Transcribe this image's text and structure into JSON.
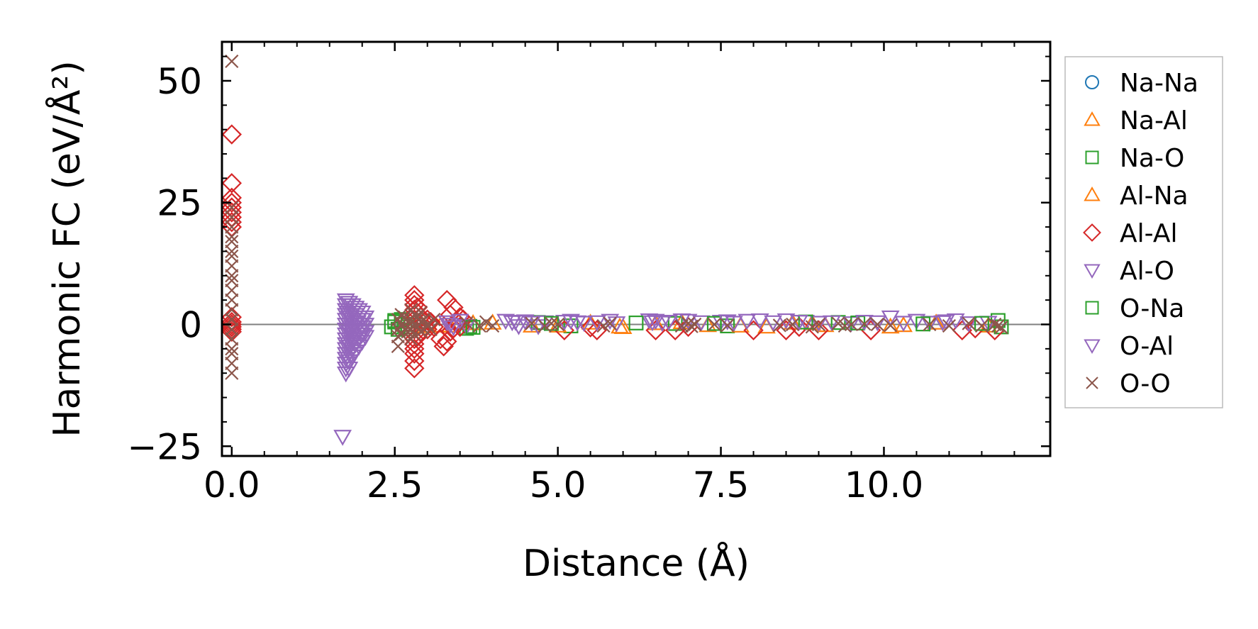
{
  "chart_data": {
    "type": "scatter",
    "title": "",
    "xlabel": "Distance (Å)",
    "ylabel": "Harmonic FC (eV/Å²)",
    "xlim": [
      -0.15,
      12.55
    ],
    "ylim": [
      -27,
      58
    ],
    "xticks": [
      0.0,
      2.5,
      5.0,
      7.5,
      10.0
    ],
    "xtick_labels": [
      "0.0",
      "2.5",
      "5.0",
      "7.5",
      "10.0"
    ],
    "yticks": [
      -25,
      0,
      25,
      50
    ],
    "ytick_labels": [
      "−25",
      "0",
      "25",
      "50"
    ],
    "reference_line_y": 0,
    "grid": false,
    "legend_position": "outside-right",
    "series": [
      {
        "name": "Na-Na",
        "marker": "circle",
        "color": "#1f77b4",
        "points": []
      },
      {
        "name": "Na-Al",
        "marker": "triangle-up",
        "color": "#ff7f0e",
        "points": [
          [
            2.95,
            -0.4
          ],
          [
            3.35,
            -0.3
          ],
          [
            3.7,
            0.2
          ],
          [
            4.6,
            -0.3
          ],
          [
            5.5,
            0.3
          ],
          [
            5.95,
            -0.5
          ],
          [
            6.0,
            -0.6
          ],
          [
            6.9,
            0.4
          ],
          [
            7.3,
            -0.2
          ],
          [
            8.2,
            -0.5
          ],
          [
            8.6,
            0.3
          ],
          [
            9.1,
            -0.2
          ],
          [
            10.1,
            -0.5
          ],
          [
            10.8,
            0.3
          ],
          [
            11.6,
            -0.3
          ]
        ]
      },
      {
        "name": "Na-O",
        "marker": "square",
        "color": "#2ca02c",
        "points": [
          [
            2.45,
            -0.5
          ],
          [
            2.5,
            0.5
          ],
          [
            2.55,
            -1.0
          ],
          [
            2.6,
            1.0
          ],
          [
            2.65,
            0.0
          ],
          [
            2.7,
            -0.5
          ],
          [
            3.6,
            -0.8
          ],
          [
            3.65,
            -0.4
          ],
          [
            4.7,
            0.4
          ],
          [
            5.2,
            -0.3
          ],
          [
            6.8,
            0.2
          ],
          [
            7.6,
            -0.3
          ],
          [
            9.3,
            0.4
          ],
          [
            11.75,
            0.8
          ],
          [
            11.8,
            -0.5
          ]
        ]
      },
      {
        "name": "Al-Na",
        "marker": "triangle-up",
        "color": "#ff7f0e",
        "points": [
          [
            3.2,
            -0.3
          ],
          [
            4.0,
            0.3
          ],
          [
            5.0,
            -0.3
          ],
          [
            6.5,
            0.2
          ],
          [
            7.8,
            -0.3
          ],
          [
            8.9,
            0.2
          ],
          [
            10.3,
            -0.2
          ]
        ]
      },
      {
        "name": "Al-Al",
        "marker": "diamond",
        "color": "#d62728",
        "points": [
          [
            0.0,
            39
          ],
          [
            0.0,
            29
          ],
          [
            0.0,
            26
          ],
          [
            0.0,
            25
          ],
          [
            0.0,
            24
          ],
          [
            0.0,
            23
          ],
          [
            0.0,
            22
          ],
          [
            0.0,
            21
          ],
          [
            0.0,
            20
          ],
          [
            0.0,
            1.5
          ],
          [
            0.0,
            0.5
          ],
          [
            0.0,
            0.0
          ],
          [
            0.0,
            -0.5
          ],
          [
            0.0,
            -1.0
          ],
          [
            0.0,
            -1.5
          ],
          [
            2.8,
            6.0
          ],
          [
            2.8,
            5.0
          ],
          [
            2.8,
            4.0
          ],
          [
            2.8,
            3.0
          ],
          [
            2.8,
            2.0
          ],
          [
            2.8,
            1.0
          ],
          [
            2.8,
            0.0
          ],
          [
            2.8,
            -1.0
          ],
          [
            2.8,
            -2.0
          ],
          [
            2.8,
            -3.0
          ],
          [
            2.8,
            -4.0
          ],
          [
            2.8,
            -5.0
          ],
          [
            2.8,
            -6.0
          ],
          [
            2.8,
            -7.5
          ],
          [
            2.8,
            -9.0
          ],
          [
            2.85,
            3.5
          ],
          [
            2.85,
            -2.5
          ],
          [
            2.9,
            1.5
          ],
          [
            2.9,
            -1.5
          ],
          [
            2.95,
            0.5
          ],
          [
            3.0,
            1.0
          ],
          [
            3.0,
            -1.0
          ],
          [
            3.05,
            0.5
          ],
          [
            3.1,
            -0.5
          ],
          [
            3.2,
            -3.0
          ],
          [
            3.25,
            -4.5
          ],
          [
            3.3,
            5.0
          ],
          [
            3.3,
            -3.5
          ],
          [
            3.35,
            2.0
          ],
          [
            3.35,
            -1.5
          ],
          [
            3.4,
            3.5
          ],
          [
            3.4,
            -0.8
          ],
          [
            3.45,
            0.5
          ],
          [
            3.5,
            1.5
          ],
          [
            3.5,
            -0.5
          ],
          [
            3.55,
            1.0
          ],
          [
            5.1,
            -1.2
          ],
          [
            5.5,
            -0.6
          ],
          [
            5.6,
            -1.2
          ],
          [
            6.5,
            -1.2
          ],
          [
            6.8,
            -1.2
          ],
          [
            7.0,
            -0.5
          ],
          [
            8.0,
            -1.2
          ],
          [
            8.5,
            -1.2
          ],
          [
            8.7,
            -0.5
          ],
          [
            9.0,
            -1.2
          ],
          [
            9.8,
            -1.2
          ],
          [
            11.2,
            -1.2
          ],
          [
            11.4,
            -0.8
          ],
          [
            11.7,
            -1.2
          ]
        ]
      },
      {
        "name": "Al-O",
        "marker": "triangle-down",
        "color": "#9467bd",
        "points": [
          [
            1.7,
            -23
          ],
          [
            1.75,
            5.0
          ],
          [
            1.75,
            4.0
          ],
          [
            1.75,
            3.0
          ],
          [
            1.75,
            2.0
          ],
          [
            1.75,
            1.0
          ],
          [
            1.75,
            0.0
          ],
          [
            1.75,
            -1.0
          ],
          [
            1.75,
            -2.0
          ],
          [
            1.75,
            -3.0
          ],
          [
            1.75,
            -4.0
          ],
          [
            1.75,
            -5.0
          ],
          [
            1.75,
            -6.0
          ],
          [
            1.75,
            -7.0
          ],
          [
            1.75,
            -8.0
          ],
          [
            1.75,
            -9.0
          ],
          [
            1.75,
            -10.0
          ],
          [
            1.8,
            4.5
          ],
          [
            1.8,
            3.0
          ],
          [
            1.8,
            1.5
          ],
          [
            1.8,
            0.0
          ],
          [
            1.8,
            -1.5
          ],
          [
            1.8,
            -3.0
          ],
          [
            1.8,
            -4.5
          ],
          [
            1.8,
            -6.0
          ],
          [
            1.8,
            -7.5
          ],
          [
            1.8,
            -9.0
          ],
          [
            1.85,
            4.0
          ],
          [
            1.85,
            2.5
          ],
          [
            1.85,
            1.0
          ],
          [
            1.85,
            -0.5
          ],
          [
            1.85,
            -2.0
          ],
          [
            1.85,
            -3.5
          ],
          [
            1.85,
            -5.0
          ],
          [
            1.85,
            -6.5
          ],
          [
            1.9,
            3.5
          ],
          [
            1.9,
            2.0
          ],
          [
            1.9,
            0.5
          ],
          [
            1.9,
            -1.0
          ],
          [
            1.9,
            -2.5
          ],
          [
            1.9,
            -4.0
          ],
          [
            1.9,
            -5.5
          ],
          [
            1.95,
            3.0
          ],
          [
            1.95,
            1.5
          ],
          [
            1.95,
            0.0
          ],
          [
            1.95,
            -1.5
          ],
          [
            1.95,
            -3.0
          ],
          [
            1.95,
            -4.5
          ],
          [
            2.0,
            2.5
          ],
          [
            2.0,
            1.0
          ],
          [
            2.0,
            -0.5
          ],
          [
            2.0,
            -2.0
          ],
          [
            2.0,
            -3.5
          ],
          [
            2.05,
            1.5
          ],
          [
            2.05,
            0.0
          ],
          [
            2.05,
            -1.5
          ],
          [
            2.05,
            -2.5
          ],
          [
            3.3,
            0.5
          ],
          [
            3.4,
            -0.5
          ],
          [
            3.5,
            0.8
          ],
          [
            3.6,
            -0.3
          ],
          [
            4.2,
            0.8
          ],
          [
            4.3,
            0.5
          ],
          [
            4.4,
            -0.3
          ],
          [
            4.5,
            0.7
          ],
          [
            4.6,
            0.4
          ],
          [
            4.7,
            -0.3
          ],
          [
            4.8,
            0.5
          ],
          [
            5.1,
            0.6
          ],
          [
            5.2,
            0.8
          ],
          [
            5.4,
            0.4
          ],
          [
            5.6,
            0.5
          ],
          [
            5.8,
            0.8
          ],
          [
            5.9,
            0.3
          ],
          [
            6.4,
            0.9
          ],
          [
            6.5,
            0.8
          ],
          [
            6.6,
            0.4
          ],
          [
            6.7,
            0.6
          ],
          [
            6.9,
            0.9
          ],
          [
            7.0,
            0.8
          ],
          [
            7.2,
            0.5
          ],
          [
            7.5,
            0.6
          ],
          [
            7.7,
            0.4
          ],
          [
            7.9,
            0.8
          ],
          [
            8.1,
            0.9
          ],
          [
            8.3,
            0.5
          ],
          [
            8.5,
            0.9
          ],
          [
            8.8,
            0.6
          ],
          [
            9.0,
            0.4
          ],
          [
            9.2,
            0.5
          ],
          [
            9.5,
            0.3
          ],
          [
            9.9,
            0.5
          ],
          [
            10.1,
            1.5
          ],
          [
            10.3,
            0.4
          ],
          [
            10.5,
            0.8
          ],
          [
            10.7,
            0.4
          ],
          [
            10.9,
            0.5
          ],
          [
            11.1,
            0.9
          ],
          [
            11.3,
            0.3
          ],
          [
            11.6,
            0.4
          ]
        ]
      },
      {
        "name": "O-Na",
        "marker": "square",
        "color": "#2ca02c",
        "points": [
          [
            2.5,
            0.8
          ],
          [
            3.7,
            -0.6
          ],
          [
            4.9,
            0.2
          ],
          [
            6.2,
            0.3
          ],
          [
            7.4,
            0.2
          ],
          [
            8.8,
            0.5
          ],
          [
            9.6,
            0.3
          ],
          [
            10.6,
            0.1
          ],
          [
            11.5,
            0.2
          ]
        ]
      },
      {
        "name": "O-Al",
        "marker": "triangle-down",
        "color": "#9467bd",
        "points": [
          [
            1.78,
            2.5
          ],
          [
            1.83,
            -1.0
          ],
          [
            1.88,
            -6.0
          ],
          [
            1.93,
            0.5
          ],
          [
            1.98,
            -2.0
          ],
          [
            3.35,
            0.0
          ],
          [
            4.35,
            0.6
          ],
          [
            5.3,
            0.5
          ],
          [
            6.45,
            0.5
          ],
          [
            7.6,
            0.7
          ],
          [
            8.7,
            0.6
          ],
          [
            9.7,
            0.6
          ],
          [
            10.95,
            0.7
          ]
        ]
      },
      {
        "name": "O-O",
        "marker": "x",
        "color": "#8c564b",
        "points": [
          [
            0.0,
            54
          ],
          [
            0.0,
            24
          ],
          [
            0.0,
            22
          ],
          [
            0.0,
            20
          ],
          [
            0.0,
            18
          ],
          [
            0.0,
            17
          ],
          [
            0.0,
            15
          ],
          [
            0.0,
            14
          ],
          [
            0.0,
            12
          ],
          [
            0.0,
            10
          ],
          [
            0.0,
            9
          ],
          [
            0.0,
            7
          ],
          [
            0.0,
            5
          ],
          [
            0.0,
            3
          ],
          [
            0.0,
            1
          ],
          [
            0.0,
            -1
          ],
          [
            0.0,
            -3
          ],
          [
            0.0,
            -5
          ],
          [
            0.0,
            -6
          ],
          [
            0.0,
            -8
          ],
          [
            0.0,
            -10
          ],
          [
            2.55,
            1.0
          ],
          [
            2.55,
            -1.0
          ],
          [
            2.55,
            -2.5
          ],
          [
            2.55,
            -4.5
          ],
          [
            2.6,
            2.0
          ],
          [
            2.6,
            0.0
          ],
          [
            2.6,
            -2.0
          ],
          [
            2.65,
            1.5
          ],
          [
            2.65,
            -1.0
          ],
          [
            2.7,
            0.5
          ],
          [
            2.7,
            -1.5
          ],
          [
            2.75,
            3.0
          ],
          [
            2.75,
            1.0
          ],
          [
            2.75,
            -1.0
          ],
          [
            2.75,
            -3.0
          ],
          [
            2.8,
            2.0
          ],
          [
            2.8,
            0.0
          ],
          [
            2.8,
            -2.0
          ],
          [
            2.85,
            1.5
          ],
          [
            2.85,
            -0.5
          ],
          [
            2.9,
            2.5
          ],
          [
            2.9,
            0.5
          ],
          [
            2.9,
            -1.5
          ],
          [
            2.95,
            1.0
          ],
          [
            2.95,
            -1.0
          ],
          [
            3.0,
            0.0
          ],
          [
            3.05,
            -1.0
          ],
          [
            3.1,
            1.0
          ],
          [
            3.6,
            0.3
          ],
          [
            3.8,
            -0.3
          ],
          [
            3.9,
            0.5
          ],
          [
            4.0,
            -0.3
          ],
          [
            4.6,
            0.2
          ],
          [
            4.8,
            -0.3
          ],
          [
            4.9,
            0.2
          ],
          [
            5.0,
            0.0
          ],
          [
            5.7,
            -0.3
          ],
          [
            5.8,
            0.2
          ],
          [
            6.9,
            -0.3
          ],
          [
            7.0,
            0.2
          ],
          [
            7.05,
            -0.4
          ],
          [
            7.1,
            0.0
          ],
          [
            7.4,
            0.0
          ],
          [
            7.6,
            -0.2
          ],
          [
            8.4,
            -0.2
          ],
          [
            8.6,
            0.0
          ],
          [
            8.9,
            -0.5
          ],
          [
            9.0,
            0.0
          ],
          [
            9.3,
            0.2
          ],
          [
            9.4,
            -0.3
          ],
          [
            9.5,
            0.0
          ],
          [
            9.7,
            0.1
          ],
          [
            9.9,
            0.0
          ],
          [
            10.1,
            -0.2
          ],
          [
            10.7,
            0.0
          ],
          [
            11.0,
            -0.3
          ],
          [
            11.3,
            0.2
          ],
          [
            11.5,
            -0.3
          ],
          [
            11.7,
            0.0
          ],
          [
            11.75,
            -0.3
          ],
          [
            11.8,
            -0.6
          ]
        ]
      }
    ]
  }
}
